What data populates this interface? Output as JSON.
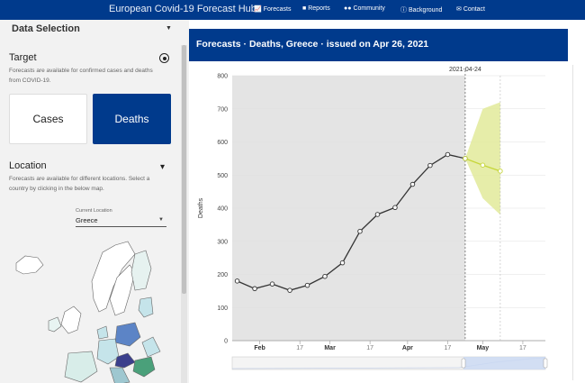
{
  "navbar": {
    "brand": "European Covid-19 Forecast Hub",
    "items": [
      {
        "label": "Forecasts",
        "icon": "chart-icon"
      },
      {
        "label": "Reports",
        "icon": "document-icon"
      },
      {
        "label": "Community",
        "icon": "users-icon"
      },
      {
        "label": "Background",
        "icon": "info-icon"
      },
      {
        "label": "Contact",
        "icon": "envelope-icon"
      }
    ]
  },
  "sidebar": {
    "title": "Data Selection",
    "target": {
      "heading": "Target",
      "description": "Forecasts are available for confirmed cases and deaths from COVID-19.",
      "buttons": [
        "Cases",
        "Deaths"
      ],
      "selected": "Deaths"
    },
    "location": {
      "heading": "Location",
      "description": "Forecasts are available for different locations. Select a country by clicking in the below map.",
      "select_label": "Current Location",
      "select_value": "Greece"
    }
  },
  "chart_header": {
    "title": "Forecasts · Deaths, Greece  · issued on Apr 26, 2021"
  },
  "chart_data": {
    "type": "line",
    "forecast_date_label": "2021-04-24",
    "ylabel": "Deaths",
    "ylim": [
      0,
      800
    ],
    "yticks": [
      0,
      100,
      200,
      300,
      400,
      500,
      600,
      700,
      800
    ],
    "xticks": [
      "Feb",
      "17",
      "Mar",
      "17",
      "Apr",
      "17",
      "May",
      "17"
    ],
    "xticks_bold": [
      "Feb",
      "Mar",
      "Apr",
      "May"
    ],
    "observed": {
      "x": [
        "2021-01-23",
        "2021-01-30",
        "2021-02-06",
        "2021-02-13",
        "2021-02-20",
        "2021-02-27",
        "2021-03-06",
        "2021-03-13",
        "2021-03-20",
        "2021-03-27",
        "2021-04-03",
        "2021-04-10",
        "2021-04-17",
        "2021-04-24"
      ],
      "y": [
        180,
        157,
        171,
        152,
        167,
        194,
        235,
        330,
        381,
        402,
        472,
        529,
        562,
        550
      ]
    },
    "forecast": {
      "x": [
        "2021-04-24",
        "2021-05-01",
        "2021-05-08"
      ],
      "median": [
        550,
        530,
        512
      ],
      "lower": [
        550,
        430,
        380
      ],
      "upper": [
        550,
        700,
        720
      ]
    },
    "colors": {
      "observed_line": "#333333",
      "forecast_line": "#c6d63a",
      "forecast_band": "#e2ea9a",
      "shaded_past": "#e4e4e4",
      "header_bg": "#003a8c"
    }
  }
}
